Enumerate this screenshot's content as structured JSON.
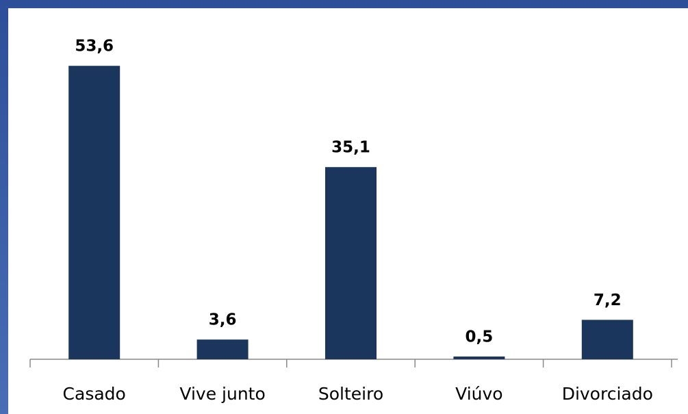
{
  "chart_data": {
    "type": "bar",
    "categories": [
      "Casado",
      "Vive junto",
      "Solteiro",
      "Viúvo",
      "Divorciado"
    ],
    "values": [
      53.6,
      3.6,
      35.1,
      0.5,
      7.2
    ],
    "value_labels": [
      "53,6",
      "3,6",
      "35,1",
      "0,5",
      "7,2"
    ],
    "color": "#1b365d",
    "ylim": [
      0,
      60
    ]
  }
}
